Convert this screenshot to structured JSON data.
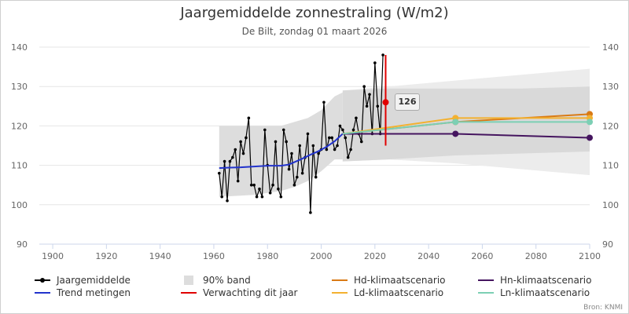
{
  "chart_data": {
    "type": "line",
    "title": "Jaargemiddelde zonnestraling (W/m2)",
    "subtitle": "De Bilt, zondag 01 maart 2026",
    "xlim": [
      1895,
      2100
    ],
    "ylim": [
      90,
      140
    ],
    "x_ticks": [
      1900,
      1920,
      1940,
      1960,
      1980,
      2000,
      2020,
      2040,
      2060,
      2080,
      2100
    ],
    "y_ticks": [
      90,
      100,
      110,
      120,
      130,
      140
    ],
    "series": [
      {
        "name": "Jaargemiddelde",
        "color": "#000000",
        "x": [
          1962,
          1963,
          1964,
          1965,
          1966,
          1967,
          1968,
          1969,
          1970,
          1971,
          1972,
          1973,
          1974,
          1975,
          1976,
          1977,
          1978,
          1979,
          1980,
          1981,
          1982,
          1983,
          1984,
          1985,
          1986,
          1987,
          1988,
          1989,
          1990,
          1991,
          1992,
          1993,
          1994,
          1995,
          1996,
          1997,
          1998,
          1999,
          2000,
          2001,
          2002,
          2003,
          2004,
          2005,
          2006,
          2007,
          2008,
          2009,
          2010,
          2011,
          2012,
          2013,
          2014,
          2015,
          2016,
          2017,
          2018,
          2019,
          2020,
          2021,
          2022,
          2023
        ],
        "y": [
          108,
          102,
          111,
          101,
          111,
          112,
          114,
          106,
          116,
          113,
          117,
          122,
          105,
          105,
          102,
          104,
          102,
          119,
          110,
          103,
          105,
          116,
          104,
          102,
          119,
          116,
          109,
          113,
          105,
          107,
          115,
          108,
          112,
          118,
          98,
          115,
          107,
          113,
          114,
          126,
          114,
          117,
          117,
          114,
          115,
          120,
          119,
          117,
          112,
          114,
          119,
          122,
          118,
          116,
          130,
          125,
          128,
          118,
          136,
          125,
          118,
          138
        ]
      },
      {
        "name": "Trend metingen",
        "color": "#2233cc",
        "x": [
          1962,
          1965,
          1970,
          1975,
          1980,
          1985,
          1988,
          1990,
          1993,
          1996,
          1999,
          2002,
          2005,
          2008
        ],
        "y": [
          109.3,
          109.4,
          109.5,
          109.7,
          109.9,
          109.9,
          110.2,
          110.8,
          111.7,
          112.7,
          113.6,
          114.7,
          116.1,
          118.0
        ]
      },
      {
        "name": "Hd-klimaatscenario",
        "color": "#d97a15",
        "x": [
          2008,
          2050,
          2100
        ],
        "y": [
          118.0,
          121.0,
          123.0
        ]
      },
      {
        "name": "Ld-klimaatscenario",
        "color": "#f3b130",
        "x": [
          2008,
          2050,
          2100
        ],
        "y": [
          118.0,
          122.0,
          122.0
        ]
      },
      {
        "name": "Hn-klimaatscenario",
        "color": "#45155f",
        "x": [
          2008,
          2050,
          2100
        ],
        "y": [
          118.0,
          118.0,
          117.0
        ]
      },
      {
        "name": "Ln-klimaatscenario",
        "color": "#7ccfb4",
        "x": [
          2008,
          2050,
          2100
        ],
        "y": [
          118.0,
          121.0,
          121.0
        ]
      }
    ],
    "band_90": {
      "measured": {
        "x": [
          1962,
          1975,
          1985,
          1990,
          1995,
          2000,
          2005,
          2008
        ],
        "lower": [
          102,
          102.5,
          103.5,
          104.5,
          106,
          108.5,
          111.5,
          111.5
        ],
        "upper": [
          120,
          120,
          120,
          121,
          122,
          124,
          127.5,
          128.5
        ]
      },
      "scenario_outer": {
        "x": [
          2008,
          2025,
          2050,
          2075,
          2100
        ],
        "lower": [
          111,
          111.5,
          110.5,
          109,
          107.5
        ],
        "upper": [
          129,
          130,
          131.5,
          133,
          134.5
        ]
      },
      "scenario_inner": {
        "x": [
          2008,
          2025,
          2050,
          2075,
          2100
        ],
        "lower": [
          111,
          111.5,
          112.5,
          113,
          113.5
        ],
        "upper": [
          129,
          129.5,
          129.5,
          129.5,
          130
        ]
      }
    },
    "forecast": {
      "name": "Verwachting dit jaar",
      "color": "#e00000",
      "x": 2024,
      "value": 126,
      "low": 115,
      "high": 138
    },
    "value_label": "126"
  },
  "legend": [
    {
      "label": "Jaargemiddelde",
      "kind": "line-dot",
      "color": "#000000"
    },
    {
      "label": "90% band",
      "kind": "box",
      "color": "#dddddd"
    },
    {
      "label": "Hd-klimaatscenario",
      "kind": "line",
      "color": "#d97a15"
    },
    {
      "label": "Hn-klimaatscenario",
      "kind": "line",
      "color": "#45155f"
    },
    {
      "label": "Trend metingen",
      "kind": "line",
      "color": "#2233cc"
    },
    {
      "label": "Verwachting dit jaar",
      "kind": "line",
      "color": "#e00000"
    },
    {
      "label": "Ld-klimaatscenario",
      "kind": "line",
      "color": "#f3b130"
    },
    {
      "label": "Ln-klimaatscenario",
      "kind": "line",
      "color": "#7ccfb4"
    }
  ],
  "source": "Bron: KNMI"
}
